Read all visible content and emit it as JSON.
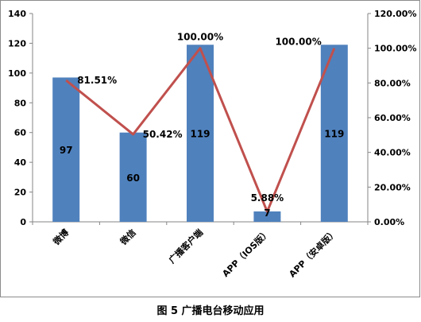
{
  "chart_data": {
    "type": "bar+line",
    "categories": [
      "微博",
      "微信",
      "广播客户端",
      "APP（IOS版）",
      "APP（安卓版）"
    ],
    "series": [
      {
        "values": [
          97,
          60,
          119,
          7,
          119
        ],
        "kind": "bar",
        "axis": "left",
        "color": "#4f81bd",
        "labels": [
          "97",
          "60",
          "119",
          "7",
          "119"
        ]
      },
      {
        "values": [
          81.51,
          50.42,
          100.0,
          5.88,
          100.0
        ],
        "kind": "line",
        "axis": "right",
        "color": "#c0504d",
        "labels": [
          "81.51%",
          "50.42%",
          "100.00%",
          "5.88%",
          "100.00%"
        ]
      }
    ],
    "left_axis": {
      "min": 0,
      "max": 140,
      "step": 20,
      "ticks": [
        "0",
        "20",
        "40",
        "60",
        "80",
        "100",
        "120",
        "140"
      ]
    },
    "right_axis": {
      "min": 0,
      "max": 120,
      "step": 20,
      "ticks": [
        "0.00%",
        "20.00%",
        "40.00%",
        "60.00%",
        "80.00%",
        "100.00%",
        "120.00%"
      ]
    },
    "grid": false,
    "legend": "none"
  },
  "caption": "图 5 广播电台移动应用"
}
